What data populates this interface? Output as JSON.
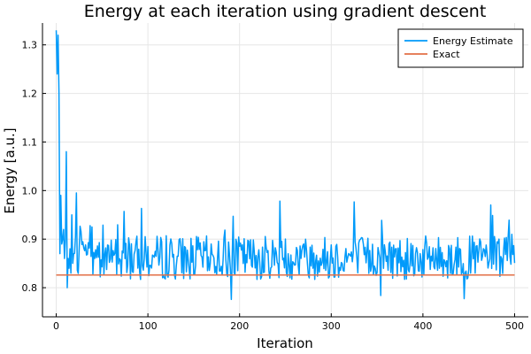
{
  "chart_data": {
    "type": "line",
    "title": "Energy at each iteration using gradient descent",
    "xlabel": "Iteration",
    "ylabel": "Energy [a.u.]",
    "xlim": [
      -15,
      515
    ],
    "ylim": [
      0.74,
      1.345
    ],
    "xticks": [
      0,
      100,
      200,
      300,
      400,
      500
    ],
    "yticks": [
      0.8,
      0.9,
      1.0,
      1.1,
      1.2,
      1.3
    ],
    "ytick_labels": [
      "0.8",
      "0.9",
      "1.0",
      "1.1",
      "1.2",
      "1.3"
    ],
    "grid": true,
    "legend_position": "top-right",
    "series": [
      {
        "name": "Energy Estimate",
        "color": "#009AFA",
        "noise": {
          "length": 501,
          "start": [
            1.33,
            1.24,
            1.32,
            1.2,
            0.87,
            0.99,
            0.89,
            0.9,
            0.92,
            0.86,
            0.9,
            1.08,
            0.8,
            0.86,
            0.84,
            0.88,
            0.83,
            0.95,
            0.85,
            0.87
          ],
          "mean": 0.862,
          "amplitude": 0.045,
          "seed": 7
        }
      },
      {
        "name": "Exact",
        "color": "#E26F46",
        "x": [
          0,
          500
        ],
        "y": [
          0.826,
          0.826
        ]
      }
    ]
  }
}
